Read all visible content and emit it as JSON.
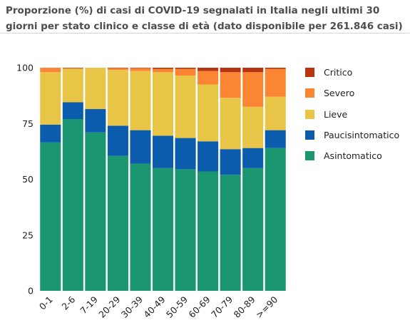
{
  "title": "Proporzione (%) di casi di COVID-19 segnalati in Italia negli ultimi 30 giorni per stato clinico e classe di età (dato disponibile per 261.846 casi)",
  "chart_data": {
    "type": "bar",
    "stacked": true,
    "categories": [
      "0-1",
      "2-6",
      "7-19",
      "20-29",
      "30-39",
      "40-49",
      "50-59",
      "60-69",
      "70-79",
      "80-89",
      ">=90"
    ],
    "yticks": [
      0,
      25,
      50,
      75,
      100
    ],
    "ylim": [
      0,
      100
    ],
    "legend_position": "right",
    "series": [
      {
        "name": "Asintomatico",
        "color": "#1a9670",
        "values": [
          66.5,
          77,
          71,
          60.5,
          57,
          55,
          54.5,
          53.5,
          52,
          55,
          64
        ]
      },
      {
        "name": "Paucisintomatico",
        "color": "#0b5cad",
        "values": [
          8,
          7.5,
          10.5,
          13.5,
          15,
          14.5,
          14,
          13.5,
          11.5,
          9,
          8
        ]
      },
      {
        "name": "Lieve",
        "color": "#e8c447",
        "values": [
          23.5,
          15,
          18.5,
          25,
          26.5,
          28.5,
          28,
          25.5,
          23,
          18.5,
          15
        ]
      },
      {
        "name": "Severo",
        "color": "#fb8533",
        "values": [
          2,
          0.3,
          0,
          0.8,
          1.3,
          1.5,
          3,
          6,
          11.5,
          15.5,
          12.5
        ]
      },
      {
        "name": "Critico",
        "color": "#b83310",
        "values": [
          0,
          0.2,
          0,
          0.2,
          0.2,
          0.5,
          0.5,
          1.5,
          2,
          2,
          0.5
        ]
      }
    ]
  },
  "legend": [
    {
      "label": "Critico",
      "color": "#b83310"
    },
    {
      "label": "Severo",
      "color": "#fb8533"
    },
    {
      "label": "Lieve",
      "color": "#e8c447"
    },
    {
      "label": "Paucisintomatico",
      "color": "#0b5cad"
    },
    {
      "label": "Asintomatico",
      "color": "#1a9670"
    }
  ]
}
